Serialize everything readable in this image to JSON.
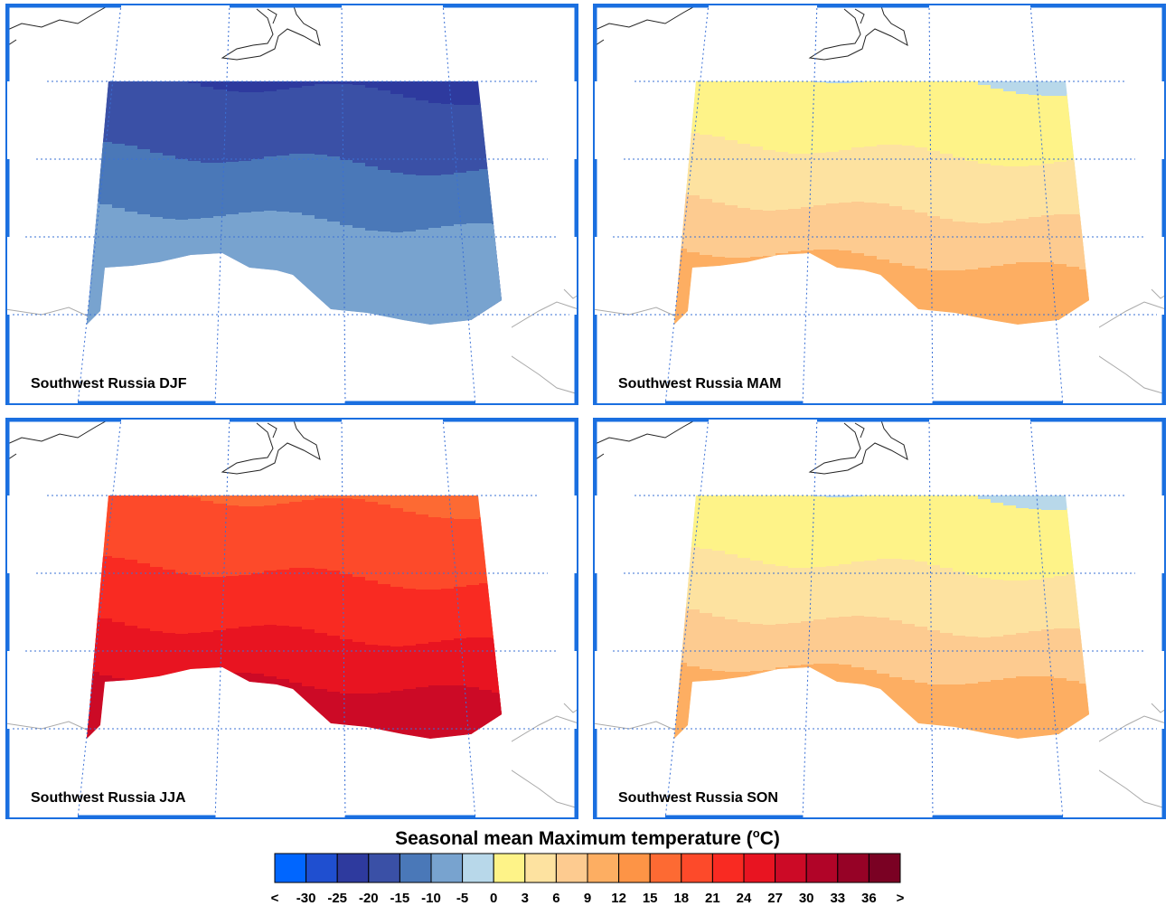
{
  "panels": [
    {
      "label": "Southwest Russia DJF",
      "season": "DJF"
    },
    {
      "label": "Southwest Russia MAM",
      "season": "MAM"
    },
    {
      "label": "Southwest Russia JJA",
      "season": "JJA"
    },
    {
      "label": "Southwest Russia SON",
      "season": "SON"
    }
  ],
  "colorbar": {
    "title_main": "Seasonal mean Maximum temperature (",
    "title_sup": "o",
    "title_tail": "C)",
    "tick_labels": [
      "<",
      "-30",
      "-25",
      "-20",
      "-15",
      "-10",
      "-5",
      "0",
      "3",
      "6",
      "9",
      "12",
      "15",
      "18",
      "21",
      "24",
      "27",
      "30",
      "33",
      "36",
      ">"
    ],
    "colors": [
      "#0066ff",
      "#1f4fd0",
      "#2e3a9e",
      "#3a50a6",
      "#4a78b8",
      "#78a3cf",
      "#b8d8ea",
      "#fef388",
      "#fde2a0",
      "#fdcb90",
      "#fdae62",
      "#fd9446",
      "#fd6a33",
      "#fd4a2a",
      "#f92a22",
      "#e81421",
      "#cc0a26",
      "#b10428",
      "#960226",
      "#7a0123"
    ]
  },
  "season_colors": {
    "DJF": [
      "#2e3a9e",
      "#3a50a6",
      "#4a78b8",
      "#78a3cf"
    ],
    "MAM": [
      "#b8d8ea",
      "#fef388",
      "#fde2a0",
      "#fdcb90",
      "#fdae62"
    ],
    "JJA": [
      "#fd6a33",
      "#fd4a2a",
      "#f92a22",
      "#e81421",
      "#cc0a26"
    ],
    "SON": [
      "#b8d8ea",
      "#fef388",
      "#fde2a0",
      "#fdcb90",
      "#fdae62"
    ]
  }
}
